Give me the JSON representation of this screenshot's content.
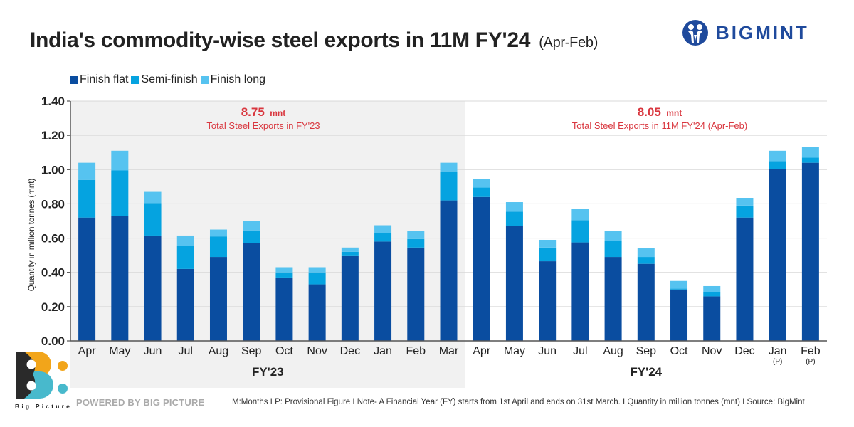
{
  "header": {
    "title": "India's commodity-wise steel exports in 11M FY'24",
    "subtitle": "(Apr-Feb)",
    "brand": "BIGMINT",
    "brand_icon": "bigmint-logo-icon"
  },
  "legend": [
    {
      "label": "Finish flat",
      "color": "#0a4da0"
    },
    {
      "label": "Semi-finish",
      "color": "#05a3e0"
    },
    {
      "label": "Finish long",
      "color": "#56c3f0"
    }
  ],
  "annotations": {
    "fy23": {
      "value": "8.75",
      "unit": "mnt",
      "text": "Total Steel Exports in FY'23"
    },
    "fy24": {
      "value": "8.05",
      "unit": "mnt",
      "text": "Total Steel Exports in 11M FY'24 (Apr-Feb)"
    },
    "color": "#d9363e"
  },
  "footer": {
    "powered_by": "POWERED BY BIG PICTURE",
    "note": "M:Months  I  P: Provisional Figure  I  Note- A Financial Year (FY) starts from 1st April and ends on 31st March.  I  Quantity in million tonnes (mnt)  I  Source: BigMint",
    "logo_text": "Big Picture"
  },
  "chart_data": {
    "type": "bar",
    "stacked": true,
    "title": "India's commodity-wise steel exports in 11M FY'24 (Apr-Feb)",
    "xlabel": "",
    "ylabel": "Quantity in million tonnes (mnt)",
    "ylim": [
      0,
      1.4
    ],
    "yticks": [
      "0.00",
      "0.20",
      "0.40",
      "0.60",
      "0.80",
      "1.00",
      "1.20",
      "1.40"
    ],
    "grid": true,
    "legend_position": "top-left",
    "groups": [
      {
        "label": "FY'23",
        "shaded": true,
        "count": 12
      },
      {
        "label": "FY'24",
        "shaded": false,
        "count": 11
      }
    ],
    "categories": [
      "Apr",
      "May",
      "Jun",
      "Jul",
      "Aug",
      "Sep",
      "Oct",
      "Nov",
      "Dec",
      "Jan",
      "Feb",
      "Mar",
      "Apr",
      "May",
      "Jun",
      "Jul",
      "Aug",
      "Sep",
      "Oct",
      "Nov",
      "Dec",
      "Jan",
      "Feb"
    ],
    "category_notes": [
      "",
      "",
      "",
      "",
      "",
      "",
      "",
      "",
      "",
      "",
      "",
      "",
      "",
      "",
      "",
      "",
      "",
      "",
      "",
      "",
      "",
      "(P)",
      "(P)"
    ],
    "series": [
      {
        "name": "Finish flat",
        "color": "#0a4da0",
        "values": [
          0.72,
          0.73,
          0.615,
          0.42,
          0.49,
          0.57,
          0.37,
          0.33,
          0.495,
          0.58,
          0.545,
          0.82,
          0.84,
          0.67,
          0.465,
          0.575,
          0.49,
          0.45,
          0.3,
          0.26,
          0.72,
          1.005,
          1.04
        ]
      },
      {
        "name": "Semi-finish",
        "color": "#05a3e0",
        "values": [
          0.22,
          0.265,
          0.19,
          0.135,
          0.12,
          0.075,
          0.03,
          0.07,
          0.025,
          0.05,
          0.05,
          0.17,
          0.055,
          0.085,
          0.08,
          0.13,
          0.095,
          0.04,
          0.005,
          0.025,
          0.07,
          0.045,
          0.03
        ]
      },
      {
        "name": "Finish long",
        "color": "#56c3f0",
        "values": [
          0.1,
          0.115,
          0.065,
          0.06,
          0.04,
          0.055,
          0.03,
          0.03,
          0.025,
          0.045,
          0.045,
          0.05,
          0.05,
          0.055,
          0.045,
          0.065,
          0.055,
          0.05,
          0.045,
          0.035,
          0.045,
          0.06,
          0.06
        ]
      }
    ]
  }
}
